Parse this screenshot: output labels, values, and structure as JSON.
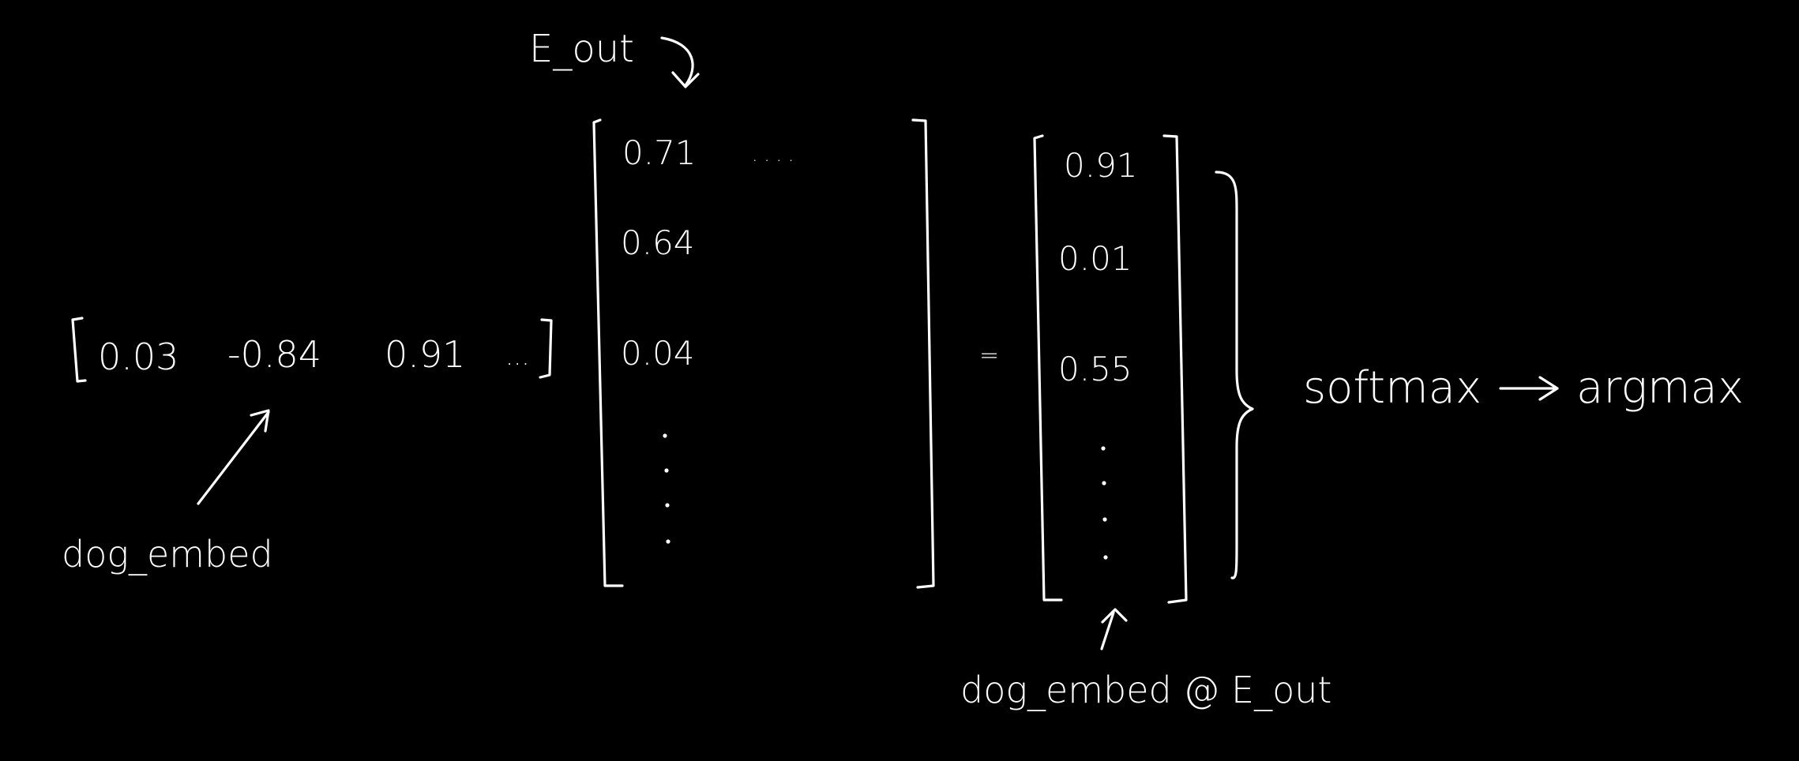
{
  "labels": {
    "e_out": "E_out",
    "dog_embed": "dog_embed",
    "result": "dog_embed @ E_out",
    "softmax": "softmax",
    "arrow": "—>",
    "argmax": "argmax"
  },
  "vector": {
    "values": [
      "0.03",
      "-0.84",
      "0.91",
      "..."
    ]
  },
  "matrix": {
    "first_row_first": "0.71",
    "first_row_ellipsis": ". . . .",
    "column": [
      "0.71",
      "0.64",
      "0.04"
    ]
  },
  "equals": "=",
  "output": {
    "values": [
      "0.91",
      "0.01",
      "0.55"
    ]
  }
}
